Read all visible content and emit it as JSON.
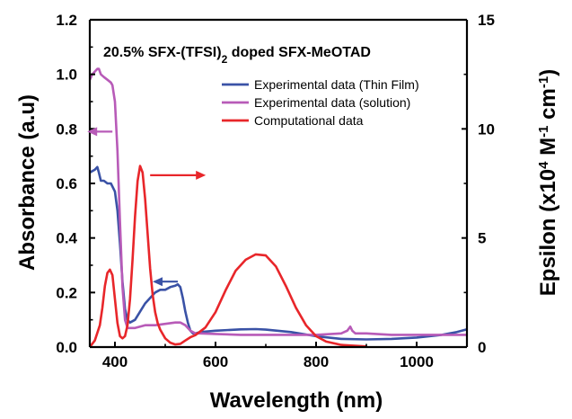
{
  "chart_data": {
    "type": "line",
    "title": "20.5% SFX-(TFSI)",
    "title_subscript": "2",
    "title_suffix": " doped SFX-MeOTAD",
    "xlabel": "Wavelength (nm)",
    "ylabel_left": "Absorbance (a.u)",
    "ylabel_right_parts": [
      "Epsilon (x10",
      "4",
      " M",
      "-1",
      " cm",
      "-1",
      ")"
    ],
    "xlim": [
      350,
      1100
    ],
    "ylim_left": [
      0,
      1.2
    ],
    "ylim_right": [
      0,
      15
    ],
    "x_ticks": [
      400,
      600,
      800,
      1000
    ],
    "x_tick_labels": [
      "400",
      "600",
      "800",
      "1000"
    ],
    "y_left_ticks": [
      0,
      0.2,
      0.4,
      0.6,
      0.8,
      1.0,
      1.2
    ],
    "y_left_tick_labels": [
      "0.0",
      "0.2",
      "0.4",
      "0.6",
      "0.8",
      "1.0",
      "1.2"
    ],
    "y_right_ticks": [
      0,
      5,
      10,
      15
    ],
    "y_right_tick_labels": [
      "0",
      "5",
      "10",
      "15"
    ],
    "grid": false,
    "legend_position": "top-right",
    "series": [
      {
        "name": "Experimental data (Thin Film)",
        "axis": "left",
        "color": "#3a52a6",
        "x": [
          350,
          360,
          365,
          368,
          372,
          378,
          385,
          392,
          400,
          405,
          410,
          415,
          420,
          425,
          430,
          440,
          450,
          460,
          470,
          480,
          490,
          500,
          510,
          520,
          525,
          530,
          535,
          540,
          545,
          550,
          555,
          560,
          570,
          600,
          650,
          680,
          700,
          750,
          800,
          850,
          900,
          950,
          1000,
          1050,
          1080,
          1100
        ],
        "values": [
          0.64,
          0.65,
          0.66,
          0.64,
          0.61,
          0.61,
          0.6,
          0.6,
          0.57,
          0.5,
          0.38,
          0.24,
          0.14,
          0.1,
          0.09,
          0.1,
          0.13,
          0.16,
          0.18,
          0.2,
          0.21,
          0.21,
          0.22,
          0.225,
          0.23,
          0.22,
          0.18,
          0.13,
          0.09,
          0.06,
          0.05,
          0.05,
          0.055,
          0.06,
          0.065,
          0.066,
          0.064,
          0.055,
          0.04,
          0.03,
          0.028,
          0.03,
          0.035,
          0.045,
          0.055,
          0.065
        ]
      },
      {
        "name": "Experimental data (solution)",
        "axis": "left",
        "color": "#b85bb8",
        "x": [
          350,
          355,
          360,
          365,
          368,
          372,
          378,
          385,
          392,
          395,
          400,
          405,
          410,
          415,
          420,
          425,
          430,
          440,
          460,
          480,
          500,
          520,
          530,
          540,
          550,
          560,
          570,
          600,
          650,
          700,
          750,
          800,
          850,
          862,
          868,
          872,
          878,
          900,
          950,
          1000,
          1050,
          1100
        ],
        "values": [
          0.98,
          1.0,
          1.01,
          1.02,
          1.02,
          1.0,
          0.99,
          0.98,
          0.97,
          0.96,
          0.9,
          0.72,
          0.46,
          0.22,
          0.1,
          0.07,
          0.07,
          0.07,
          0.08,
          0.08,
          0.085,
          0.09,
          0.09,
          0.08,
          0.06,
          0.05,
          0.05,
          0.048,
          0.045,
          0.045,
          0.045,
          0.045,
          0.05,
          0.06,
          0.075,
          0.06,
          0.05,
          0.05,
          0.045,
          0.045,
          0.045,
          0.045
        ]
      },
      {
        "name": "Computational data",
        "axis": "right",
        "color": "#e8262a",
        "x": [
          350,
          360,
          370,
          375,
          380,
          385,
          390,
          395,
          400,
          405,
          410,
          415,
          420,
          425,
          430,
          435,
          440,
          445,
          450,
          455,
          460,
          465,
          470,
          475,
          480,
          485,
          490,
          500,
          510,
          520,
          530,
          540,
          550,
          560,
          580,
          600,
          620,
          640,
          660,
          680,
          700,
          720,
          740,
          760,
          780,
          800,
          820,
          850,
          900
        ],
        "values": [
          0.0,
          0.3,
          1.0,
          1.8,
          2.8,
          3.4,
          3.55,
          3.3,
          2.2,
          1.1,
          0.5,
          0.4,
          0.5,
          1.0,
          2.2,
          4.0,
          6.0,
          7.6,
          8.3,
          8.0,
          6.8,
          5.2,
          3.6,
          2.4,
          1.6,
          1.1,
          0.8,
          0.4,
          0.2,
          0.12,
          0.15,
          0.3,
          0.45,
          0.55,
          0.9,
          1.6,
          2.6,
          3.5,
          4.0,
          4.25,
          4.2,
          3.7,
          2.8,
          1.8,
          1.0,
          0.5,
          0.25,
          0.1,
          0.03
        ]
      }
    ],
    "annotations": [
      {
        "type": "arrow",
        "color": "#b85bb8",
        "direction": "left",
        "x": 395,
        "y": 0.79,
        "axis": "left"
      },
      {
        "type": "arrow",
        "color": "#3a52a6",
        "direction": "left",
        "x": 525,
        "y": 0.24,
        "axis": "left"
      },
      {
        "type": "arrow",
        "color": "#e8262a",
        "direction": "right",
        "x": 470,
        "y": 0.63,
        "axis": "left"
      }
    ]
  }
}
